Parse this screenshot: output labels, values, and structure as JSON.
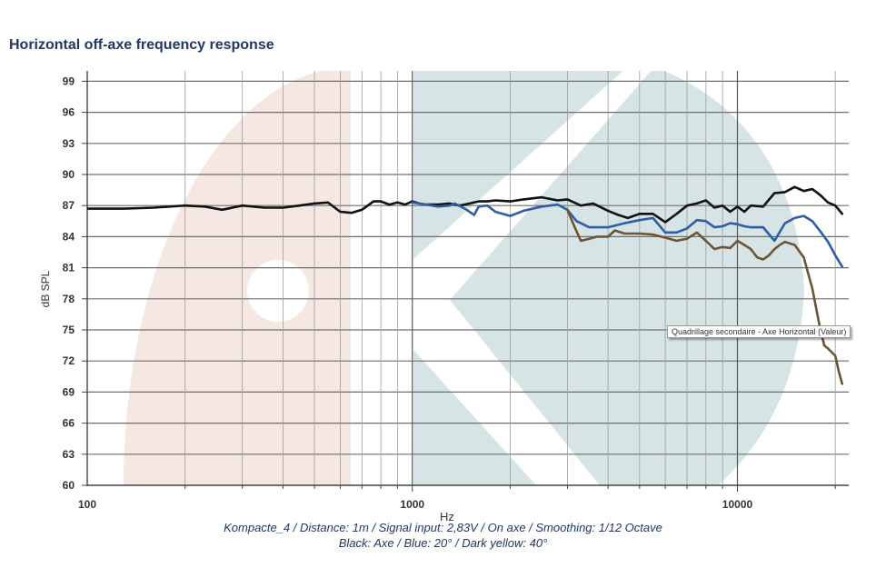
{
  "title": "Horizontal off-axe frequency response",
  "caption_line1": "Kompacte_4 / Distance: 1m / Signal input: 2,83V / On axe / Smoothing: 1/12 Octave",
  "caption_line2": "Black: Axe / Blue: 20° / Dark yellow: 40°",
  "tooltip": "Quadrillage secondaire - Axe Horizontal (Valeur)",
  "chart_data": {
    "type": "line",
    "title": "Horizontal off-axe frequency response",
    "xlabel": "Hz",
    "ylabel": "dB SPL",
    "x_scale": "log",
    "xlim": [
      100,
      22000
    ],
    "ylim": [
      60,
      100
    ],
    "x_ticks": [
      100,
      1000,
      10000
    ],
    "y_ticks": [
      60,
      63,
      66,
      69,
      72,
      75,
      78,
      81,
      84,
      87,
      90,
      93,
      96,
      99
    ],
    "grid": true,
    "series": [
      {
        "color": "#111111",
        "x": [
          100,
          130,
          160,
          200,
          230,
          260,
          300,
          350,
          400,
          450,
          500,
          550,
          600,
          650,
          700,
          760,
          800,
          850,
          900,
          950,
          1000,
          1050,
          1100,
          1200,
          1300,
          1400,
          1500,
          1600,
          1700,
          1800,
          2000,
          2200,
          2500,
          2800,
          3000,
          3300,
          3600,
          4000,
          4300,
          4600,
          5000,
          5500,
          6000,
          6500,
          7000,
          7500,
          8000,
          8500,
          9000,
          9500,
          10000,
          10500,
          11000,
          12000,
          13000,
          14000,
          15000,
          16000,
          17000,
          18000,
          19000,
          20000,
          21000
        ],
        "y": [
          86.7,
          86.7,
          86.8,
          87.0,
          86.9,
          86.6,
          87.0,
          86.8,
          86.8,
          87.0,
          87.2,
          87.3,
          86.4,
          86.3,
          86.6,
          87.4,
          87.4,
          87.1,
          87.3,
          87.1,
          87.4,
          87.2,
          87.1,
          87.1,
          87.2,
          87.0,
          87.2,
          87.4,
          87.4,
          87.5,
          87.4,
          87.6,
          87.8,
          87.5,
          87.6,
          87.0,
          87.2,
          86.5,
          86.1,
          85.8,
          86.2,
          86.2,
          85.4,
          86.2,
          87.0,
          87.2,
          87.5,
          86.8,
          87.0,
          86.4,
          86.9,
          86.4,
          87.0,
          86.9,
          88.2,
          88.3,
          88.8,
          88.4,
          88.6,
          88.0,
          87.3,
          87.0,
          86.2
        ]
      },
      {
        "color": "#2e5fa6",
        "x": [
          1000,
          1100,
          1200,
          1300,
          1350,
          1450,
          1550,
          1600,
          1700,
          1800,
          2000,
          2200,
          2500,
          2800,
          3000,
          3200,
          3500,
          4000,
          4500,
          5000,
          5500,
          6000,
          6500,
          7000,
          7500,
          8000,
          8500,
          9000,
          9500,
          10000,
          10500,
          11000,
          12000,
          13000,
          14000,
          15000,
          16000,
          17000,
          18000,
          19000,
          20000,
          21000
        ],
        "y": [
          87.3,
          87.1,
          86.9,
          87.0,
          87.2,
          86.7,
          86.1,
          86.9,
          87.0,
          86.4,
          86.0,
          86.5,
          86.9,
          87.1,
          86.6,
          85.5,
          84.9,
          84.9,
          85.3,
          85.6,
          85.8,
          84.4,
          84.4,
          84.8,
          85.6,
          85.5,
          84.9,
          85.0,
          85.3,
          85.2,
          85.0,
          84.9,
          84.9,
          83.6,
          85.3,
          85.8,
          86.0,
          85.5,
          84.5,
          83.5,
          82.2,
          81.1
        ]
      },
      {
        "color": "#6b5535",
        "x": [
          3000,
          3150,
          3300,
          3500,
          3700,
          4000,
          4200,
          4500,
          5000,
          5500,
          6000,
          6500,
          7000,
          7500,
          8000,
          8500,
          9000,
          9500,
          10000,
          10500,
          11000,
          11500,
          12000,
          12500,
          13000,
          13500,
          14000,
          15000,
          16000,
          17000,
          18000,
          18500,
          19000,
          20000,
          20500,
          21000
        ],
        "y": [
          86.6,
          85.0,
          83.6,
          83.8,
          84.0,
          84.0,
          84.6,
          84.3,
          84.3,
          84.2,
          83.9,
          83.6,
          83.8,
          84.4,
          83.6,
          82.8,
          83.0,
          82.9,
          83.6,
          83.2,
          82.8,
          82.0,
          81.8,
          82.2,
          82.8,
          83.2,
          83.5,
          83.2,
          82.0,
          79.0,
          75.0,
          73.5,
          73.2,
          72.5,
          71.0,
          69.8
        ]
      }
    ]
  }
}
